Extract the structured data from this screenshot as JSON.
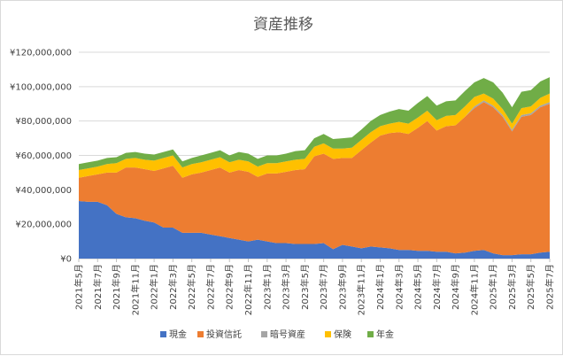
{
  "chart_data": {
    "type": "area",
    "stacked": true,
    "title": "資産推移",
    "xlabel": "",
    "ylabel": "",
    "ylim": [
      0,
      120000000
    ],
    "y_ticks": [
      "¥0",
      "¥20,000,000",
      "¥40,000,000",
      "¥60,000,000",
      "¥80,000,000",
      "¥100,000,000",
      "¥120,000,000"
    ],
    "grid": true,
    "legend_position": "bottom",
    "x": [
      "2021年5月",
      "2021年6月",
      "2021年7月",
      "2021年8月",
      "2021年9月",
      "2021年10月",
      "2021年11月",
      "2021年12月",
      "2022年1月",
      "2022年2月",
      "2022年3月",
      "2022年4月",
      "2022年5月",
      "2022年6月",
      "2022年7月",
      "2022年8月",
      "2022年9月",
      "2022年10月",
      "2022年11月",
      "2022年12月",
      "2023年1月",
      "2023年2月",
      "2023年3月",
      "2023年4月",
      "2023年5月",
      "2023年6月",
      "2023年7月",
      "2023年8月",
      "2023年9月",
      "2023年10月",
      "2023年11月",
      "2023年12月",
      "2024年1月",
      "2024年2月",
      "2024年3月",
      "2024年4月",
      "2024年5月",
      "2024年6月",
      "2024年7月",
      "2024年8月",
      "2024年9月",
      "2024年10月",
      "2024年11月",
      "2024年12月",
      "2025年1月",
      "2025年2月",
      "2025年3月",
      "2025年4月",
      "2025年5月",
      "2025年6月",
      "2025年7月"
    ],
    "x_tick_labels": [
      "2021年5月",
      "2021年7月",
      "2021年9月",
      "2021年11月",
      "2022年1月",
      "2022年3月",
      "2022年5月",
      "2022年7月",
      "2022年9月",
      "2022年11月",
      "2023年1月",
      "2023年3月",
      "2023年5月",
      "2023年7月",
      "2023年9月",
      "2023年11月",
      "2024年1月",
      "2024年3月",
      "2024年5月",
      "2024年7月",
      "2024年9月",
      "2024年11月",
      "2025年1月",
      "2025年3月",
      "2025年5月",
      "2025年7月"
    ],
    "series": [
      {
        "name": "現金",
        "color": "#4472c4",
        "values": [
          33500000,
          33000000,
          33000000,
          31000000,
          26000000,
          24000000,
          23500000,
          22000000,
          21000000,
          18000000,
          18000000,
          15000000,
          15000000,
          15000000,
          14000000,
          13000000,
          12000000,
          11000000,
          10000000,
          11000000,
          10000000,
          9000000,
          9000000,
          8500000,
          8500000,
          8500000,
          9000000,
          5500000,
          8000000,
          7000000,
          6000000,
          7000000,
          6500000,
          6000000,
          5000000,
          5000000,
          4500000,
          4500000,
          4000000,
          4000000,
          3000000,
          3500000,
          4500000,
          5000000,
          3000000,
          2000000,
          2000000,
          2500000,
          2500000,
          3500000,
          4000000
        ]
      },
      {
        "name": "投資信託",
        "color": "#ed7d31",
        "values": [
          13500000,
          15000000,
          16000000,
          19000000,
          24000000,
          29000000,
          29500000,
          30000000,
          30000000,
          34500000,
          36000000,
          32000000,
          34000000,
          35000000,
          37500000,
          40000000,
          38000000,
          40500000,
          40500000,
          36500000,
          39500000,
          40500000,
          41500000,
          43000000,
          43500000,
          51000000,
          52000000,
          52500000,
          50500000,
          51500000,
          57000000,
          60500000,
          65000000,
          67000000,
          68500000,
          67500000,
          71500000,
          75500000,
          70500000,
          73000000,
          74500000,
          79000000,
          83000000,
          86000000,
          85000000,
          80500000,
          72000000,
          80000000,
          81000000,
          84500000,
          86000000
        ]
      },
      {
        "name": "暗号資産",
        "color": "#a5a5a5",
        "values": [
          0,
          0,
          0,
          0,
          0,
          0,
          0,
          0,
          0,
          0,
          0,
          0,
          0,
          0,
          0,
          0,
          0,
          0,
          0,
          0,
          0,
          0,
          0,
          0,
          0,
          0,
          0,
          0,
          0,
          0,
          0,
          0,
          0,
          0,
          0,
          0,
          0,
          0,
          0,
          0,
          0,
          0,
          1000000,
          1000000,
          1000000,
          1000000,
          1000000,
          1000000,
          1000000,
          1000000,
          1000000
        ]
      },
      {
        "name": "保険",
        "color": "#ffc000",
        "values": [
          4500000,
          4500000,
          4500000,
          5000000,
          5500000,
          5000000,
          5500000,
          5500000,
          6000000,
          6000000,
          6000000,
          6000000,
          6000000,
          6000000,
          6000000,
          6000000,
          6000000,
          6000000,
          6000000,
          6000000,
          6000000,
          6000000,
          6000000,
          6000000,
          6000000,
          5500000,
          6000000,
          6000000,
          5500000,
          6000000,
          6000000,
          6000000,
          5500000,
          5500000,
          6000000,
          6000000,
          6000000,
          6000000,
          6000000,
          6000000,
          6000000,
          6000000,
          5500000,
          4000000,
          4000000,
          3500000,
          3500000,
          4000000,
          4000000,
          4500000,
          5000000
        ]
      },
      {
        "name": "年金",
        "color": "#70ad47",
        "values": [
          3500000,
          3500000,
          3500000,
          3500000,
          3500000,
          3500000,
          3500000,
          3500000,
          3500000,
          3500000,
          3500000,
          3500000,
          3500000,
          4000000,
          4000000,
          4000000,
          4000000,
          4500000,
          4500000,
          4500000,
          4500000,
          4500000,
          4500000,
          5000000,
          5000000,
          5000000,
          5500000,
          5500000,
          6000000,
          6000000,
          6000000,
          6500000,
          6500000,
          7000000,
          7500000,
          7500000,
          8500000,
          8500000,
          8500000,
          8500000,
          8500000,
          9000000,
          8500000,
          9000000,
          9500000,
          9500000,
          9500000,
          9500000,
          9500000,
          9500000,
          9500000
        ]
      }
    ]
  }
}
